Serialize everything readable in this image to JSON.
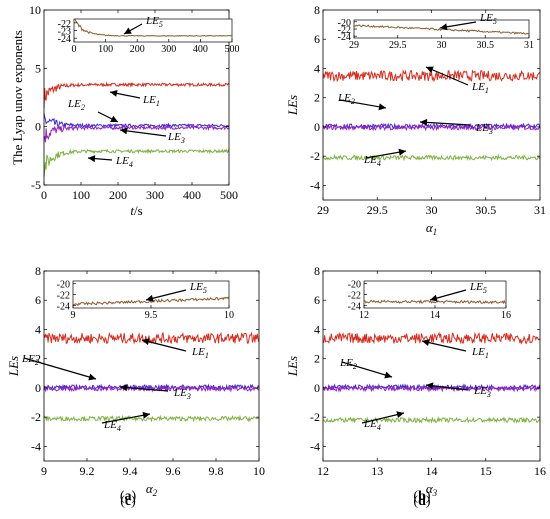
{
  "chart_data": [
    {
      "panel": "(a)",
      "type": "line",
      "xlabel": "t/s",
      "ylabel": "The Lyap unov exponents",
      "xlim": [
        0,
        500
      ],
      "ylim": [
        -5,
        10
      ],
      "xticks": [
        0,
        100,
        200,
        300,
        400,
        500
      ],
      "yticks": [
        -5,
        0,
        5,
        10
      ],
      "series": [
        {
          "name": "LE1",
          "color": "#d62c1e",
          "steady": 3.6,
          "start": 2.5
        },
        {
          "name": "LE2",
          "color": "#3a2bd0",
          "steady": 0.1,
          "start": 0.6
        },
        {
          "name": "LE3",
          "color": "#9a1fc4",
          "steady": -0.1,
          "start": -0.8
        },
        {
          "name": "LE4",
          "color": "#7cb341",
          "steady": -2.1,
          "start": -3.5
        }
      ],
      "annotations": [
        {
          "text": "LE1",
          "sub": "1",
          "tx": 150,
          "ty": 3.0
        },
        {
          "text": "LE2",
          "sub": "2",
          "tx": 20,
          "ty": 1.3
        },
        {
          "text": "LE3",
          "sub": "3",
          "tx": 330,
          "ty": -0.5
        },
        {
          "text": "LE4",
          "sub": "4",
          "tx": 30,
          "ty": -2.2
        }
      ],
      "inset": {
        "series": {
          "name": "LE5",
          "color": "#8b5a2b",
          "steady": -23.7,
          "start": -21.5
        },
        "xlim": [
          0,
          500
        ],
        "ylim": [
          -24.5,
          -21.5
        ],
        "xticks": [
          0,
          100,
          200,
          300,
          400,
          500
        ],
        "yticks": [
          -22,
          -23,
          -24
        ],
        "annotation": {
          "text": "LE5",
          "sub": "5"
        }
      }
    },
    {
      "panel": "(b)",
      "type": "line",
      "xlabel": "α1",
      "xsub": "1",
      "ylabel": "LEs",
      "xlim": [
        29,
        31
      ],
      "ylim": [
        -5,
        8
      ],
      "xticks": [
        29,
        29.5,
        30,
        30.5,
        31
      ],
      "yticks": [
        -4,
        -2,
        0,
        2,
        4,
        6,
        8
      ],
      "series": [
        {
          "name": "LE1",
          "color": "#d62c1e",
          "mean": 3.5
        },
        {
          "name": "LE2",
          "color": "#3a2bd0",
          "mean": 0.05
        },
        {
          "name": "LE3",
          "color": "#9a1fc4",
          "mean": -0.05
        },
        {
          "name": "LE4",
          "color": "#7cb341",
          "mean": -2.1
        }
      ],
      "inset": {
        "series": {
          "name": "LE5",
          "color": "#8b5a2b",
          "from": -21.0,
          "to": -23.3
        },
        "xlim": [
          29,
          31
        ],
        "ylim": [
          -24.5,
          -19.5
        ],
        "xticks": [
          29,
          29.5,
          30,
          30.5,
          31
        ],
        "yticks": [
          -20,
          -22,
          -24
        ]
      }
    },
    {
      "panel": "(c)",
      "type": "line",
      "xlabel": "α2",
      "xsub": "2",
      "ylabel": "LEs",
      "xlim": [
        9,
        10
      ],
      "ylim": [
        -5,
        8
      ],
      "xticks": [
        9,
        9.2,
        9.4,
        9.6,
        9.8,
        10
      ],
      "yticks": [
        -4,
        -2,
        0,
        2,
        4,
        6,
        8
      ],
      "series": [
        {
          "name": "LE1",
          "color": "#d62c1e",
          "mean": 3.4
        },
        {
          "name": "LE2",
          "color": "#3a2bd0",
          "mean": 0.05
        },
        {
          "name": "LE3",
          "color": "#9a1fc4",
          "mean": -0.05
        },
        {
          "name": "LE4",
          "color": "#7cb341",
          "mean": -2.1
        }
      ],
      "inset": {
        "series": {
          "name": "LE5",
          "color": "#8b5a2b",
          "from": -23.8,
          "to": -22.7
        },
        "xlim": [
          9,
          10
        ],
        "ylim": [
          -24.5,
          -19.5
        ],
        "xticks": [
          9,
          9.5,
          10
        ],
        "yticks": [
          -20,
          -22,
          -24
        ]
      }
    },
    {
      "panel": "(d)",
      "type": "line",
      "xlabel": "α3",
      "xsub": "3",
      "ylabel": "LEs",
      "xlim": [
        12,
        16
      ],
      "ylim": [
        -5,
        8
      ],
      "xticks": [
        12,
        13,
        14,
        15,
        16
      ],
      "yticks": [
        -4,
        -2,
        0,
        2,
        4,
        6,
        8
      ],
      "series": [
        {
          "name": "LE1",
          "color": "#d62c1e",
          "mean": 3.4
        },
        {
          "name": "LE2",
          "color": "#3a2bd0",
          "mean": 0.05
        },
        {
          "name": "LE3",
          "color": "#9a1fc4",
          "mean": -0.05
        },
        {
          "name": "LE4",
          "color": "#7cb341",
          "mean": -2.2
        }
      ],
      "inset": {
        "series": {
          "name": "LE5",
          "color": "#8b5a2b",
          "from": -23.3,
          "to": -23.4
        },
        "xlim": [
          12,
          16
        ],
        "ylim": [
          -24.5,
          -19.5
        ],
        "xticks": [
          12,
          14,
          16
        ],
        "yticks": [
          -20,
          -22,
          -24
        ]
      }
    }
  ],
  "captions": [
    "(a)",
    "(b)",
    "(c)",
    "(d)"
  ],
  "caption_letters": [
    "a",
    "b",
    "c",
    "d"
  ],
  "series_label_base": "LE",
  "inset_label": "LE5",
  "xlabel_prefix": "α"
}
